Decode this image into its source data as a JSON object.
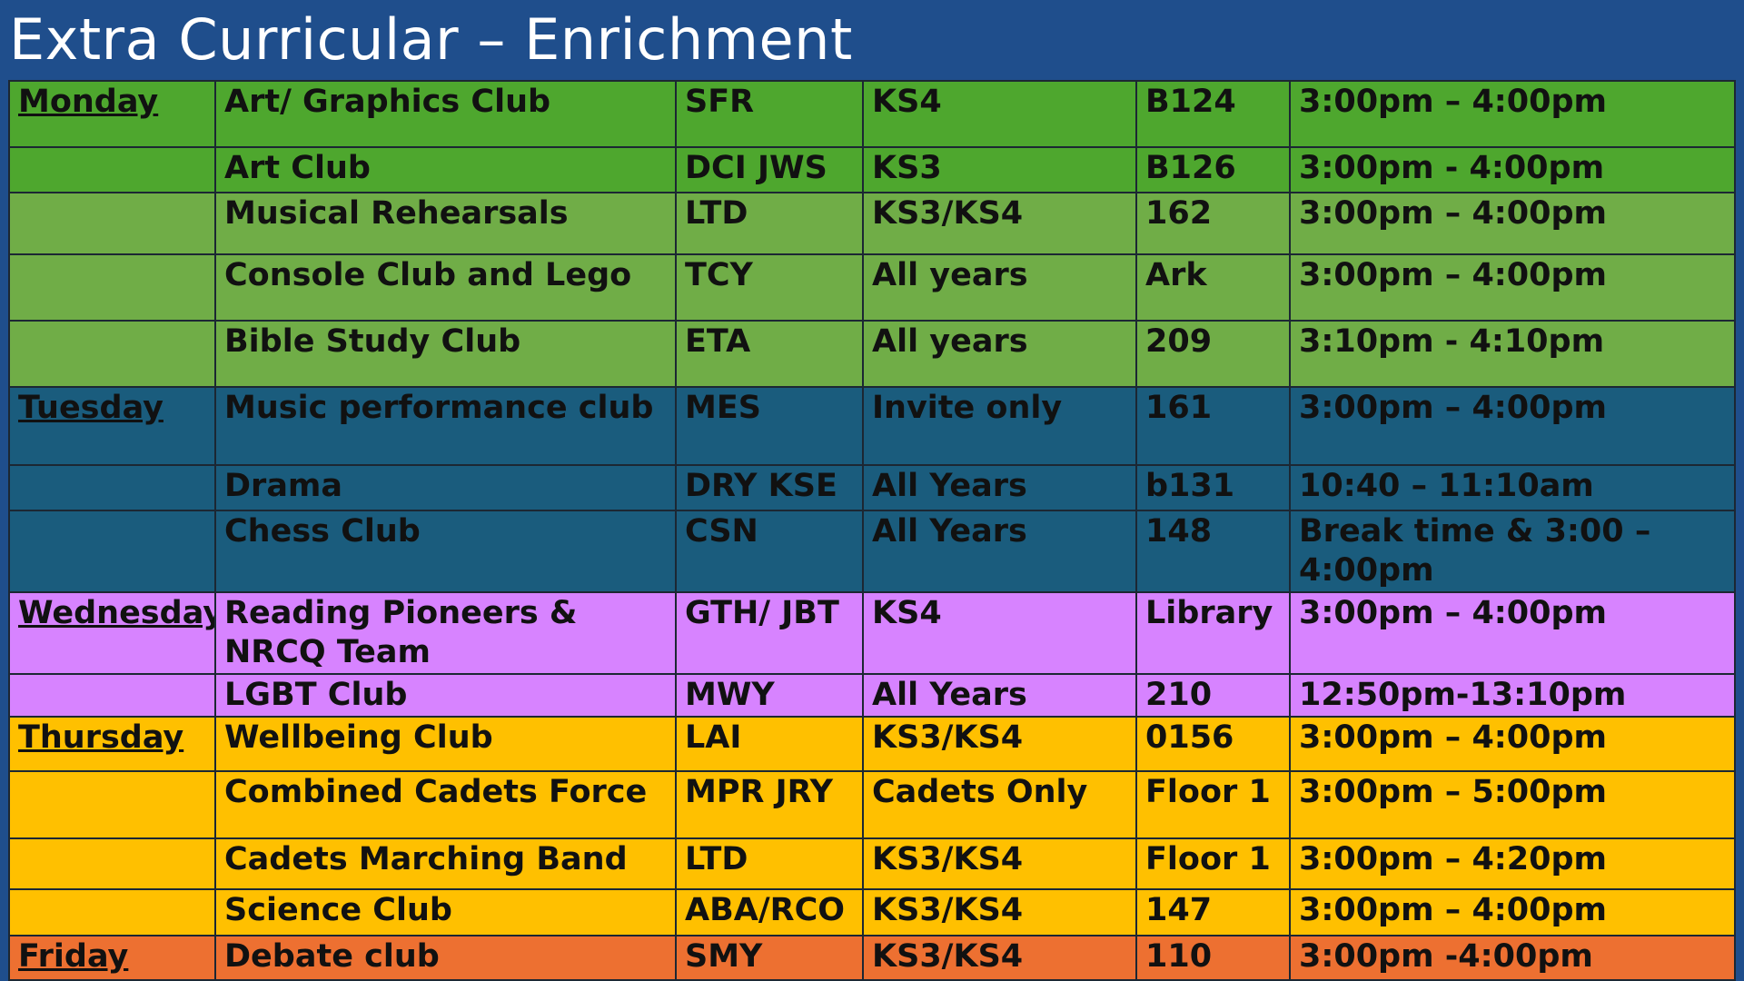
{
  "title": "Extra Curricular – Enrichment",
  "colors": {
    "header_bg": "#1f4e8c",
    "monday_dark": "#4ea72e",
    "monday_light": "#70ad47",
    "tuesday": "#1a5c7d",
    "wednesday": "#d783ff",
    "thursday": "#ffc000",
    "friday": "#ed7031"
  },
  "rows": [
    {
      "day": "Monday",
      "club": "Art/ Graphics Club",
      "staff": "SFR",
      "years": "KS4",
      "room": "B124",
      "time": "3:00pm – 4:00pm"
    },
    {
      "day": "",
      "club": "Art Club",
      "staff": "DCI JWS",
      "years": "KS3",
      "room": "B126",
      "time": "3:00pm - 4:00pm"
    },
    {
      "day": "",
      "club": "Musical Rehearsals",
      "staff": "LTD",
      "years": "KS3/KS4",
      "room": "162",
      "time": "3:00pm – 4:00pm"
    },
    {
      "day": "",
      "club": "Console Club and Lego",
      "staff": "TCY",
      "years": "All years",
      "room": "Ark",
      "time": "3:00pm – 4:00pm"
    },
    {
      "day": "",
      "club": "Bible Study Club",
      "staff": "ETA",
      "years": "All years",
      "room": "209",
      "time": "3:10pm - 4:10pm"
    },
    {
      "day": "Tuesday",
      "club": "Music performance club",
      "staff": "MES",
      "years": "Invite only",
      "room": "161",
      "time": "3:00pm – 4:00pm"
    },
    {
      "day": "",
      "club": "Drama",
      "staff": "DRY KSE",
      "years": "All Years",
      "room": "b131",
      "time": "10:40 – 11:10am"
    },
    {
      "day": "",
      "club": "Chess Club",
      "staff": "CSN",
      "years": "All Years",
      "room": "148",
      "time": "Break time & 3:00 – 4:00pm"
    },
    {
      "day": "Wednesday",
      "club": "Reading Pioneers & NRCQ Team",
      "staff": "GTH/ JBT",
      "years": "KS4",
      "room": "Library",
      "time": "3:00pm – 4:00pm"
    },
    {
      "day": "",
      "club": "LGBT Club",
      "staff": "MWY",
      "years": "All Years",
      "room": "210",
      "time": "12:50pm-13:10pm"
    },
    {
      "day": "Thursday",
      "club": "Wellbeing Club",
      "staff": "LAI",
      "years": "KS3/KS4",
      "room": "0156",
      "time": "3:00pm – 4:00pm"
    },
    {
      "day": "",
      "club": "Combined Cadets Force",
      "staff": "MPR JRY",
      "years": "Cadets Only",
      "room": "Floor 1",
      "time": "3:00pm – 5:00pm"
    },
    {
      "day": "",
      "club": "Cadets Marching Band",
      "staff": "LTD",
      "years": "KS3/KS4",
      "room": "Floor 1",
      "time": "3:00pm – 4:20pm"
    },
    {
      "day": "",
      "club": "Science Club",
      "staff": "ABA/RCO",
      "years": "KS3/KS4",
      "room": "147",
      "time": "3:00pm – 4:00pm"
    },
    {
      "day": "Friday",
      "club": "Debate club",
      "staff": "SMY",
      "years": "KS3/KS4",
      "room": "110",
      "time": "3:00pm -4:00pm"
    }
  ]
}
